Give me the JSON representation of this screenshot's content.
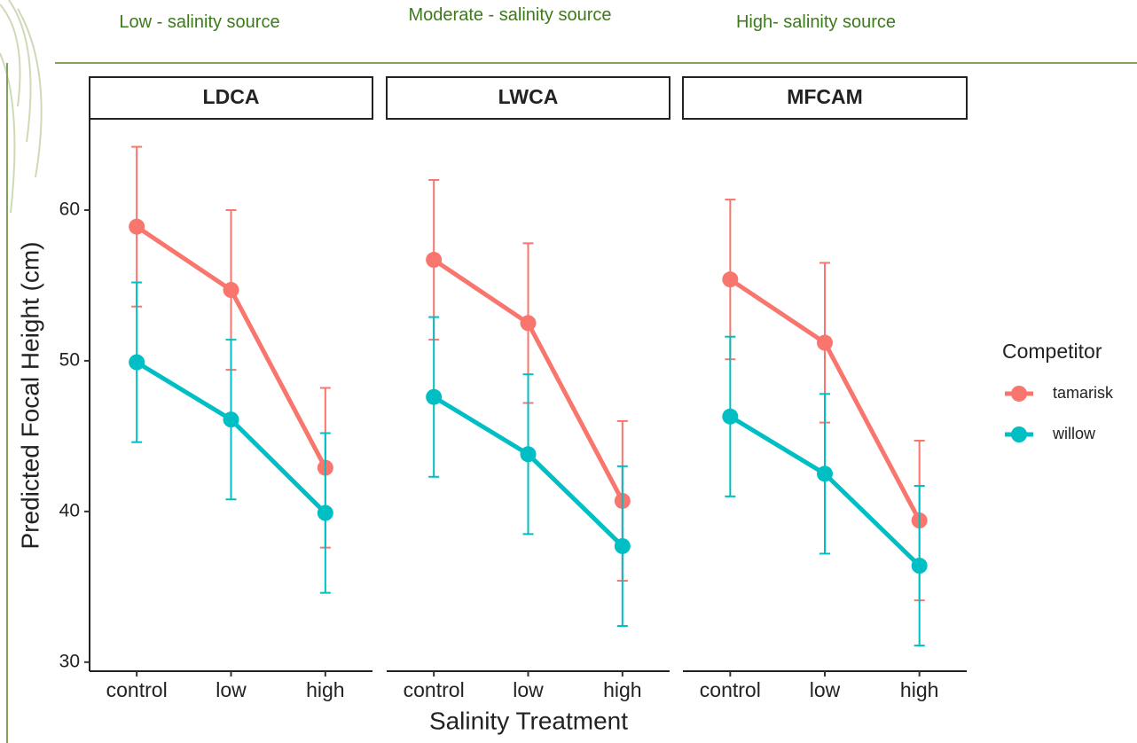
{
  "header": {
    "labels": [
      "Low - salinity source",
      "Moderate - salinity source",
      "High- salinity source"
    ]
  },
  "chart_data": {
    "type": "line",
    "xlabel": "Salinity Treatment",
    "ylabel": "Predicted Focal Height (cm)",
    "legend_title": "Competitor",
    "categories": [
      "control",
      "low",
      "high"
    ],
    "ylim": [
      29.4,
      66
    ],
    "yticks": [
      30,
      40,
      50,
      60
    ],
    "panels": [
      {
        "title": "LDCA",
        "series": [
          {
            "name": "tamarisk",
            "color": "#F8766D",
            "values": [
              58.9,
              54.7,
              42.9
            ],
            "errors": [
              5.3,
              5.3,
              5.3
            ]
          },
          {
            "name": "willow",
            "color": "#00BFC4",
            "values": [
              49.9,
              46.1,
              39.9
            ],
            "errors": [
              5.3,
              5.3,
              5.3
            ]
          }
        ]
      },
      {
        "title": "LWCA",
        "series": [
          {
            "name": "tamarisk",
            "color": "#F8766D",
            "values": [
              56.7,
              52.5,
              40.7
            ],
            "errors": [
              5.3,
              5.3,
              5.3
            ]
          },
          {
            "name": "willow",
            "color": "#00BFC4",
            "values": [
              47.6,
              43.8,
              37.7
            ],
            "errors": [
              5.3,
              5.3,
              5.3
            ]
          }
        ]
      },
      {
        "title": "MFCAM",
        "series": [
          {
            "name": "tamarisk",
            "color": "#F8766D",
            "values": [
              55.4,
              51.2,
              39.4
            ],
            "errors": [
              5.3,
              5.3,
              5.3
            ]
          },
          {
            "name": "willow",
            "color": "#00BFC4",
            "values": [
              46.3,
              42.5,
              36.4
            ],
            "errors": [
              5.3,
              5.3,
              5.3
            ]
          }
        ]
      }
    ]
  }
}
